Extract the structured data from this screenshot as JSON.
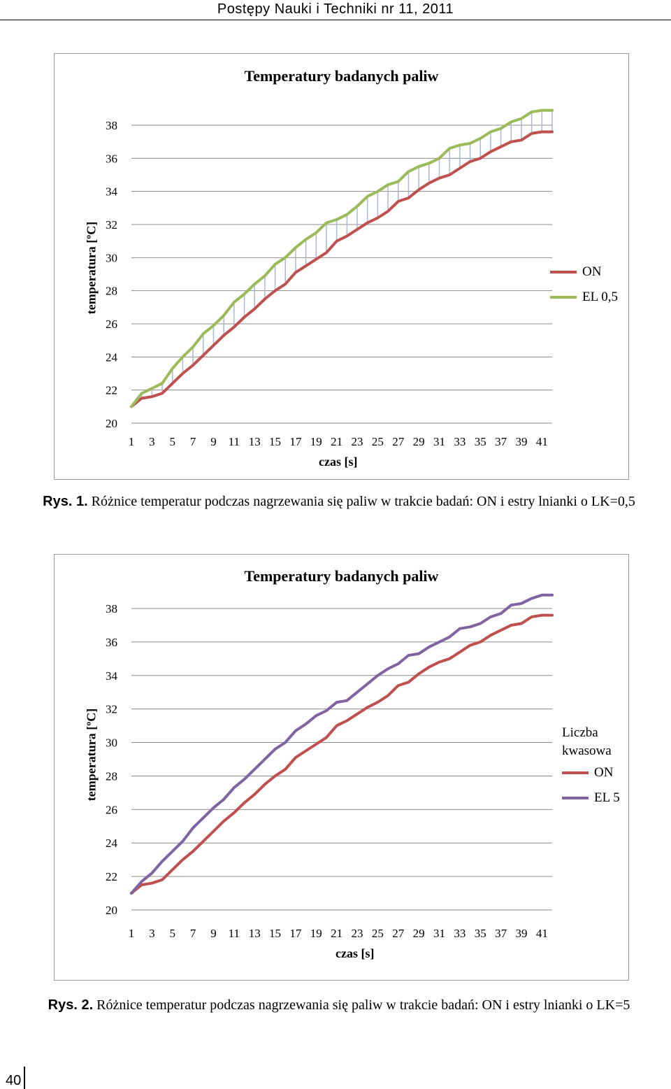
{
  "header": "Postępy Nauki i Techniki nr 11, 2011",
  "page_number": "40",
  "captions": [
    {
      "label": "Rys. 1.",
      "text": "Różnice temperatur podczas nagrzewania się paliw w trakcie badań: ON i estry lnianki o LK=0,5"
    },
    {
      "label": "Rys. 2.",
      "text": "Różnice temperatur podczas nagrzewania się paliw w trakcie badań: ON i estry lnianki o LK=5"
    }
  ],
  "chart_data": [
    {
      "type": "line",
      "title": "Temperatury badanych paliw",
      "xlabel": "czas [s]",
      "ylabel": "temperatura [ºC]",
      "ylim": [
        20,
        38
      ],
      "yticks": [
        20,
        22,
        24,
        26,
        28,
        30,
        32,
        34,
        36,
        38
      ],
      "x": [
        1,
        2,
        3,
        4,
        5,
        6,
        7,
        8,
        9,
        10,
        11,
        12,
        13,
        14,
        15,
        16,
        17,
        18,
        19,
        20,
        21,
        22,
        23,
        24,
        25,
        26,
        27,
        28,
        29,
        30,
        31,
        32,
        33,
        34,
        35,
        36,
        37,
        38,
        39,
        40,
        41,
        42
      ],
      "xtick_labels": [
        "1",
        "3",
        "5",
        "7",
        "9",
        "11",
        "13",
        "15",
        "17",
        "19",
        "21",
        "23",
        "25",
        "27",
        "29",
        "31",
        "33",
        "35",
        "37",
        "39",
        "41"
      ],
      "grid": "horizontal",
      "legend_position": "right",
      "drop_lines": true,
      "series": [
        {
          "name": "ON",
          "color": "#c0504d",
          "values": [
            21.0,
            21.5,
            21.6,
            21.8,
            22.4,
            23.0,
            23.5,
            24.1,
            24.7,
            25.3,
            25.8,
            26.4,
            26.9,
            27.5,
            28.0,
            28.4,
            29.1,
            29.5,
            29.9,
            30.3,
            31.0,
            31.3,
            31.7,
            32.1,
            32.4,
            32.8,
            33.4,
            33.6,
            34.1,
            34.5,
            34.8,
            35.0,
            35.4,
            35.8,
            36.0,
            36.4,
            36.7,
            37.0,
            37.1,
            37.5,
            37.6,
            37.6
          ]
        },
        {
          "name": "EL 0,5",
          "color": "#9bbb59",
          "values": [
            21.0,
            21.8,
            22.1,
            22.4,
            23.3,
            24.0,
            24.6,
            25.4,
            25.9,
            26.5,
            27.3,
            27.8,
            28.4,
            28.9,
            29.6,
            30.0,
            30.6,
            31.1,
            31.5,
            32.1,
            32.3,
            32.6,
            33.1,
            33.7,
            34.0,
            34.4,
            34.6,
            35.2,
            35.5,
            35.7,
            36.0,
            36.6,
            36.8,
            36.9,
            37.2,
            37.6,
            37.8,
            38.2,
            38.4,
            38.8,
            38.9,
            38.9
          ]
        }
      ]
    },
    {
      "type": "line",
      "title": "Temperatury badanych paliw",
      "xlabel": "czas [s]",
      "ylabel": "temperatura [ºC]",
      "ylim": [
        20,
        38
      ],
      "yticks": [
        20,
        22,
        24,
        26,
        28,
        30,
        32,
        34,
        36,
        38
      ],
      "x": [
        1,
        2,
        3,
        4,
        5,
        6,
        7,
        8,
        9,
        10,
        11,
        12,
        13,
        14,
        15,
        16,
        17,
        18,
        19,
        20,
        21,
        22,
        23,
        24,
        25,
        26,
        27,
        28,
        29,
        30,
        31,
        32,
        33,
        34,
        35,
        36,
        37,
        38,
        39,
        40,
        41,
        42
      ],
      "xtick_labels": [
        "1",
        "3",
        "5",
        "7",
        "9",
        "11",
        "13",
        "15",
        "17",
        "19",
        "21",
        "23",
        "25",
        "27",
        "29",
        "31",
        "33",
        "35",
        "37",
        "39",
        "41"
      ],
      "grid": "horizontal",
      "legend_position": "right",
      "legend_title": "Liczba kwasowa",
      "series": [
        {
          "name": "ON",
          "color": "#c0504d",
          "values": [
            21.0,
            21.5,
            21.6,
            21.8,
            22.4,
            23.0,
            23.5,
            24.1,
            24.7,
            25.3,
            25.8,
            26.4,
            26.9,
            27.5,
            28.0,
            28.4,
            29.1,
            29.5,
            29.9,
            30.3,
            31.0,
            31.3,
            31.7,
            32.1,
            32.4,
            32.8,
            33.4,
            33.6,
            34.1,
            34.5,
            34.8,
            35.0,
            35.4,
            35.8,
            36.0,
            36.4,
            36.7,
            37.0,
            37.1,
            37.5,
            37.6,
            37.6
          ]
        },
        {
          "name": "EL 5",
          "color": "#8064a2",
          "values": [
            21.0,
            21.7,
            22.2,
            22.9,
            23.5,
            24.1,
            24.9,
            25.5,
            26.1,
            26.6,
            27.3,
            27.8,
            28.4,
            29.0,
            29.6,
            30.0,
            30.7,
            31.1,
            31.6,
            31.9,
            32.4,
            32.5,
            33.0,
            33.5,
            34.0,
            34.4,
            34.7,
            35.2,
            35.3,
            35.7,
            36.0,
            36.3,
            36.8,
            36.9,
            37.1,
            37.5,
            37.7,
            38.2,
            38.3,
            38.6,
            38.8,
            38.8
          ]
        }
      ]
    }
  ]
}
